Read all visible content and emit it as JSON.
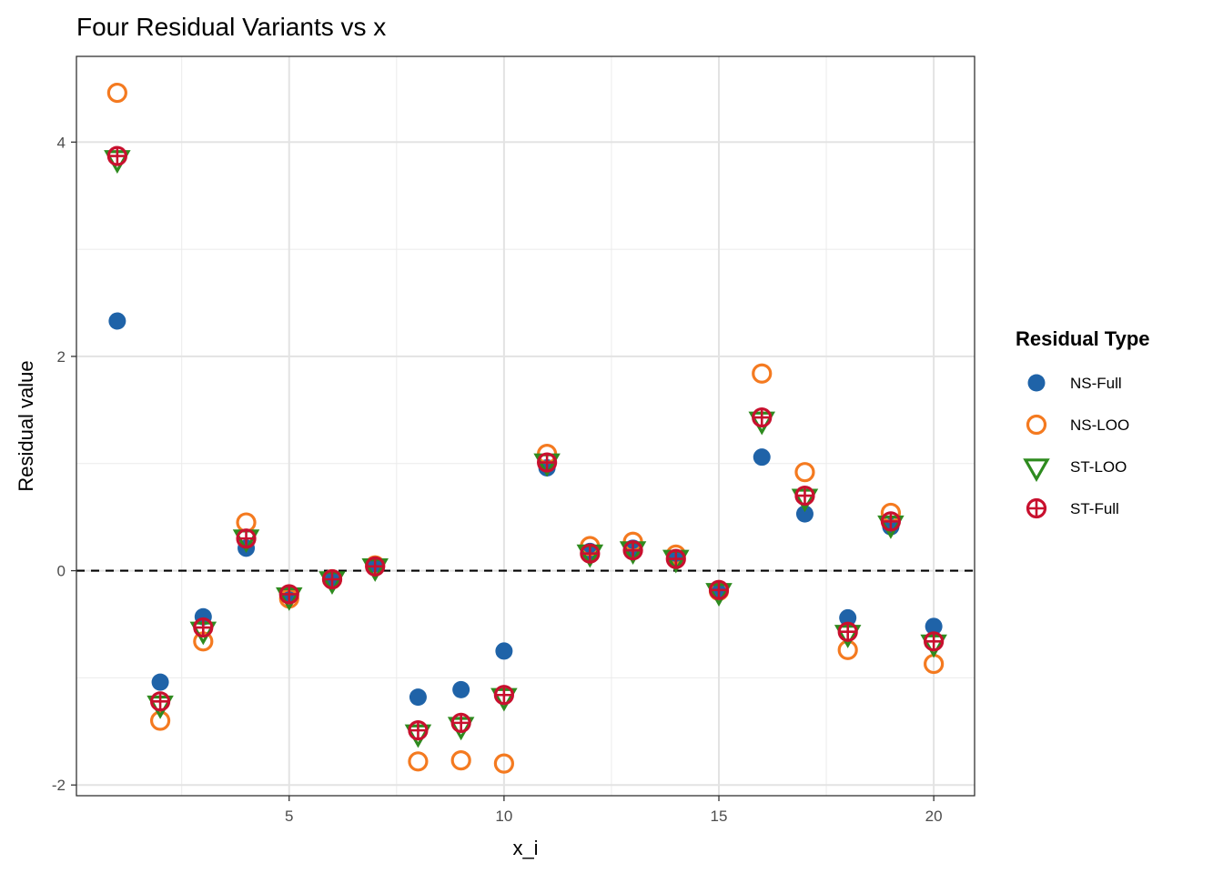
{
  "chart_data": {
    "type": "scatter",
    "title": "Four Residual Variants vs x",
    "xlabel": "x_i",
    "ylabel": "Residual value",
    "xlim": [
      0.05,
      20.95
    ],
    "ylim": [
      -2.1,
      4.8
    ],
    "xticks": [
      5,
      10,
      15,
      20
    ],
    "yticks": [
      -2,
      0,
      2,
      4
    ],
    "grid": true,
    "reference_line": {
      "y": 0,
      "style": "dashed"
    },
    "legend": {
      "title": "Residual Type",
      "placement": "right"
    },
    "x": [
      1,
      2,
      3,
      4,
      5,
      6,
      7,
      8,
      9,
      10,
      11,
      12,
      13,
      14,
      15,
      16,
      17,
      18,
      19,
      20
    ],
    "series": [
      {
        "name": "NS-Full",
        "marker": "filled-circle",
        "color": "#1f63a8",
        "values": [
          2.33,
          -1.04,
          -0.43,
          0.21,
          -0.22,
          -0.07,
          0.03,
          -1.18,
          -1.11,
          -0.75,
          0.96,
          0.18,
          0.21,
          0.12,
          -0.17,
          1.06,
          0.53,
          -0.44,
          0.41,
          -0.52
        ]
      },
      {
        "name": "NS-LOO",
        "marker": "open-circle",
        "color": "#f47a20",
        "values": [
          4.46,
          -1.4,
          -0.66,
          0.45,
          -0.26,
          -0.08,
          0.05,
          -1.78,
          -1.77,
          -1.8,
          1.09,
          0.23,
          0.27,
          0.15,
          -0.19,
          1.84,
          0.92,
          -0.74,
          0.54,
          -0.87
        ]
      },
      {
        "name": "ST-LOO",
        "marker": "open-triangle-down",
        "color": "#2e8b1f",
        "values": [
          3.85,
          -1.24,
          -0.55,
          0.31,
          -0.23,
          -0.08,
          0.04,
          -1.51,
          -1.44,
          -1.17,
          1.02,
          0.17,
          0.2,
          0.12,
          -0.19,
          1.41,
          0.69,
          -0.58,
          0.44,
          -0.67
        ]
      },
      {
        "name": "ST-Full",
        "marker": "circle-plus",
        "color": "#c8102e",
        "values": [
          3.87,
          -1.22,
          -0.53,
          0.3,
          -0.22,
          -0.08,
          0.04,
          -1.49,
          -1.42,
          -1.16,
          1.01,
          0.16,
          0.19,
          0.11,
          -0.18,
          1.43,
          0.7,
          -0.57,
          0.46,
          -0.66
        ]
      }
    ]
  }
}
